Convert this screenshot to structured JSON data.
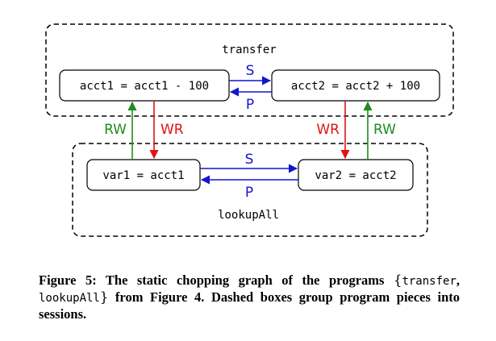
{
  "diagram": {
    "sessions": {
      "transfer": "transfer",
      "lookupAll": "lookupAll"
    },
    "nodes": {
      "acct1_update": "acct1 = acct1 - 100",
      "acct2_update": "acct2 = acct2 + 100",
      "var1_read": "var1 = acct1",
      "var2_read": "var2 = acct2"
    },
    "edge_labels": {
      "top_s": "S",
      "top_p": "P",
      "bottom_s": "S",
      "bottom_p": "P",
      "left_rw": "RW",
      "left_wr": "WR",
      "right_wr": "WR",
      "right_rw": "RW"
    },
    "colors": {
      "sequence": "#1414d2",
      "rw": "#1e8c1e",
      "wr": "#e01414"
    }
  },
  "caption": {
    "part1": "Figure 5:  The static chopping graph of the programs ",
    "brace_open": "{",
    "prog1": "transfer",
    "comma": ", ",
    "prog2": "lookupAll",
    "brace_close": "}",
    "part2": " from Figure 4.  Dashed boxes group program pieces into sessions."
  }
}
